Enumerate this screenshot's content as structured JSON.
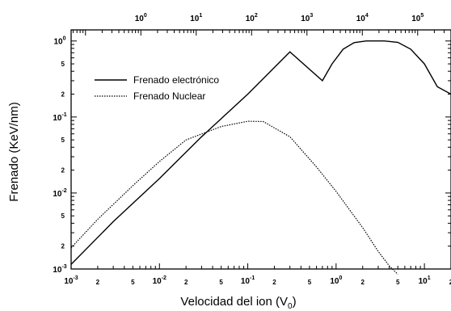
{
  "chart_data": {
    "type": "line",
    "title": "",
    "xlabel": "Velocidad del ion (V",
    "xlabel_sub": "0",
    "xlabel_end": ")",
    "ylabel": "Frenado (KeV/nm)",
    "x_scale": "log",
    "y_scale": "log",
    "xlim": [
      0.001,
      20
    ],
    "ylim": [
      0.001,
      1.4
    ],
    "top_axis": {
      "scale": "log",
      "lim": [
        0.055,
        400000
      ],
      "ticks": [
        {
          "base": "10",
          "exp": "0",
          "value": 1
        },
        {
          "base": "10",
          "exp": "1",
          "value": 10
        },
        {
          "base": "10",
          "exp": "2",
          "value": 100
        },
        {
          "base": "10",
          "exp": "3",
          "value": 1000
        },
        {
          "base": "10",
          "exp": "4",
          "value": 10000
        },
        {
          "base": "10",
          "exp": "5",
          "value": 100000
        }
      ]
    },
    "x_ticks": [
      {
        "base": "10",
        "exp": "-3",
        "value": 0.001
      },
      {
        "label": "2",
        "value": 0.002
      },
      {
        "label": "5",
        "value": 0.005
      },
      {
        "base": "10",
        "exp": "-2",
        "value": 0.01
      },
      {
        "label": "2",
        "value": 0.02
      },
      {
        "label": "5",
        "value": 0.05
      },
      {
        "base": "10",
        "exp": "-1",
        "value": 0.1
      },
      {
        "label": "2",
        "value": 0.2
      },
      {
        "label": "5",
        "value": 0.5
      },
      {
        "base": "10",
        "exp": "0",
        "value": 1
      },
      {
        "label": "2",
        "value": 2
      },
      {
        "label": "5",
        "value": 5
      },
      {
        "base": "10",
        "exp": "1",
        "value": 10
      },
      {
        "label": "2",
        "value": 20
      }
    ],
    "y_ticks": [
      {
        "base": "10",
        "exp": "-3",
        "value": 0.001
      },
      {
        "label": "2",
        "value": 0.002
      },
      {
        "label": "5",
        "value": 0.005
      },
      {
        "base": "10",
        "exp": "-2",
        "value": 0.01
      },
      {
        "label": "2",
        "value": 0.02
      },
      {
        "label": "5",
        "value": 0.05
      },
      {
        "base": "10",
        "exp": "-1",
        "value": 0.1
      },
      {
        "label": "2",
        "value": 0.2
      },
      {
        "label": "5",
        "value": 0.5
      },
      {
        "base": "10",
        "exp": "0",
        "value": 1
      }
    ],
    "series": [
      {
        "name": "Frenado electrónico",
        "style": "solid",
        "color": "#000000",
        "points": [
          [
            0.001,
            0.00115
          ],
          [
            0.003,
            0.0042
          ],
          [
            0.01,
            0.0155
          ],
          [
            0.03,
            0.055
          ],
          [
            0.1,
            0.2
          ],
          [
            0.3,
            0.72
          ],
          [
            0.7,
            0.3
          ],
          [
            0.9,
            0.5
          ],
          [
            1.2,
            0.78
          ],
          [
            1.6,
            0.95
          ],
          [
            2.2,
            1.0
          ],
          [
            3.5,
            1.0
          ],
          [
            5,
            0.96
          ],
          [
            7,
            0.78
          ],
          [
            10,
            0.5
          ],
          [
            14,
            0.25
          ],
          [
            20,
            0.2
          ]
        ]
      },
      {
        "name": "Frenado Nuclear",
        "style": "dotted",
        "color": "#000000",
        "points": [
          [
            0.001,
            0.0019
          ],
          [
            0.002,
            0.0045
          ],
          [
            0.005,
            0.0125
          ],
          [
            0.01,
            0.026
          ],
          [
            0.02,
            0.05
          ],
          [
            0.05,
            0.075
          ],
          [
            0.1,
            0.088
          ],
          [
            0.15,
            0.087
          ],
          [
            0.3,
            0.055
          ],
          [
            0.6,
            0.022
          ],
          [
            1,
            0.0105
          ],
          [
            2,
            0.0035
          ],
          [
            3,
            0.0017
          ],
          [
            4,
            0.0011
          ],
          [
            5,
            0.00085
          ]
        ]
      }
    ],
    "legend_position": "top-left"
  }
}
